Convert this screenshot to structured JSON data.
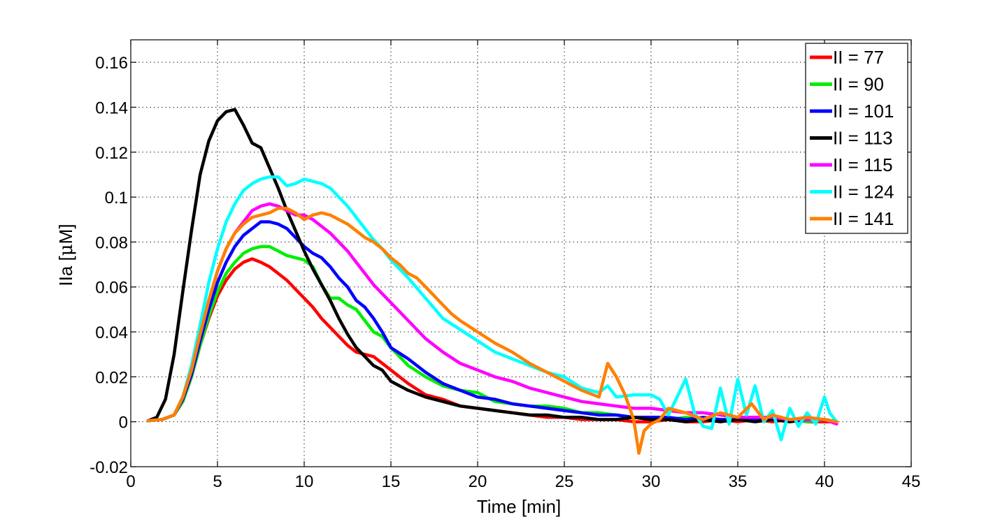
{
  "chart_data": {
    "type": "line",
    "title": "",
    "xlabel": "Time [min]",
    "ylabel_main": "IIa [",
    "ylabel_mu": "μ",
    "ylabel_unit": "M]",
    "xlim": [
      0,
      45
    ],
    "ylim": [
      -0.02,
      0.17
    ],
    "xticks": [
      0,
      5,
      10,
      15,
      20,
      25,
      30,
      35,
      40,
      45
    ],
    "xtick_labels": [
      "0",
      "5",
      "10",
      "15",
      "20",
      "25",
      "30",
      "35",
      "40",
      "45"
    ],
    "yticks": [
      -0.02,
      0,
      0.02,
      0.04,
      0.06,
      0.08,
      0.1,
      0.12,
      0.14,
      0.16
    ],
    "ytick_labels": [
      "-0.02",
      "0",
      "0.02",
      "0.04",
      "0.06",
      "0.08",
      "0.1",
      "0.12",
      "0.14",
      "0.16"
    ],
    "grid": true,
    "legend_position": "top-right",
    "series": [
      {
        "name": "II = 77",
        "color": "#ff0000",
        "x": [
          1,
          1.8,
          2.5,
          3,
          3.5,
          4,
          4.5,
          5,
          5.5,
          6,
          6.5,
          7,
          7.5,
          8,
          8.5,
          9,
          9.5,
          10,
          10.5,
          11,
          11.5,
          12,
          12.5,
          13,
          13.5,
          14,
          15,
          16,
          17,
          18,
          19,
          20,
          21,
          22,
          23,
          24,
          25,
          26,
          27,
          28,
          29,
          30,
          31,
          32,
          33,
          34,
          35,
          36,
          37,
          38,
          39,
          40,
          40.7
        ],
        "y": [
          0.0005,
          0.001,
          0.003,
          0.009,
          0.02,
          0.034,
          0.046,
          0.056,
          0.063,
          0.068,
          0.071,
          0.0725,
          0.071,
          0.069,
          0.066,
          0.063,
          0.059,
          0.055,
          0.051,
          0.046,
          0.042,
          0.038,
          0.034,
          0.031,
          0.03,
          0.029,
          0.023,
          0.017,
          0.012,
          0.01,
          0.007,
          0.006,
          0.005,
          0.004,
          0.003,
          0.002,
          0.002,
          0.001,
          0.001,
          0.001,
          0.0,
          0.0,
          0.001,
          0.0,
          0.0,
          0.001,
          0.0,
          0.001,
          0.0,
          0.001,
          0.0,
          0.0,
          0.0
        ]
      },
      {
        "name": "II = 90",
        "color": "#00ee00",
        "x": [
          1,
          1.8,
          2.5,
          3,
          3.5,
          4,
          4.5,
          5,
          5.5,
          6,
          6.5,
          7,
          7.5,
          8,
          8.5,
          9,
          9.5,
          10,
          10.5,
          11,
          11.5,
          12,
          12.5,
          13,
          13.5,
          14,
          14.5,
          15,
          16,
          17,
          18,
          19,
          20,
          21,
          22,
          23,
          24,
          25,
          26,
          27,
          28,
          29,
          30,
          31,
          32,
          33,
          34,
          35,
          36,
          37,
          38,
          39,
          40,
          40.7
        ],
        "y": [
          0.0005,
          0.001,
          0.003,
          0.009,
          0.02,
          0.034,
          0.047,
          0.058,
          0.066,
          0.071,
          0.075,
          0.077,
          0.078,
          0.078,
          0.076,
          0.074,
          0.073,
          0.072,
          0.069,
          0.061,
          0.055,
          0.055,
          0.052,
          0.05,
          0.045,
          0.04,
          0.038,
          0.033,
          0.025,
          0.02,
          0.016,
          0.014,
          0.013,
          0.009,
          0.008,
          0.007,
          0.007,
          0.006,
          0.004,
          0.004,
          0.003,
          0.002,
          0.002,
          0.001,
          0.002,
          0.001,
          0.001,
          0.001,
          0.001,
          0.001,
          0.001,
          0.0,
          0.001,
          0.0
        ]
      },
      {
        "name": "II = 101",
        "color": "#0000ff",
        "x": [
          1,
          1.8,
          2.5,
          3,
          3.5,
          4,
          4.5,
          5,
          5.5,
          6,
          6.5,
          7,
          7.5,
          8,
          8.5,
          9,
          9.5,
          10,
          10.5,
          11,
          11.5,
          12,
          12.5,
          13,
          13.5,
          14,
          14.5,
          15,
          16,
          17,
          18,
          19,
          20,
          21,
          22,
          23,
          24,
          25,
          26,
          27,
          28,
          29,
          30,
          31,
          32,
          33,
          34,
          35,
          36,
          37,
          38,
          39,
          40,
          40.7
        ],
        "y": [
          0.0005,
          0.001,
          0.003,
          0.01,
          0.021,
          0.036,
          0.05,
          0.062,
          0.071,
          0.078,
          0.083,
          0.086,
          0.089,
          0.089,
          0.088,
          0.086,
          0.082,
          0.078,
          0.075,
          0.073,
          0.069,
          0.064,
          0.06,
          0.054,
          0.051,
          0.046,
          0.04,
          0.033,
          0.028,
          0.022,
          0.017,
          0.014,
          0.011,
          0.01,
          0.008,
          0.007,
          0.006,
          0.005,
          0.004,
          0.003,
          0.003,
          0.002,
          0.002,
          0.002,
          0.001,
          0.002,
          0.001,
          0.001,
          0.001,
          0.001,
          0.001,
          0.001,
          0.001,
          0.0
        ]
      },
      {
        "name": "II = 113",
        "color": "#000000",
        "x": [
          1,
          1.5,
          2,
          2.5,
          3,
          3.5,
          4,
          4.5,
          5,
          5.5,
          6,
          6.5,
          7,
          7.5,
          8,
          8.5,
          9,
          9.5,
          10,
          10.5,
          11,
          11.5,
          12,
          12.5,
          13,
          13.5,
          14,
          14.5,
          15,
          16,
          17,
          18,
          19,
          20,
          21,
          22,
          23,
          24,
          25,
          26,
          27,
          28,
          29,
          30,
          31,
          32,
          33,
          34,
          35,
          36,
          37,
          38,
          39,
          40,
          40.7
        ],
        "y": [
          0.0005,
          0.002,
          0.01,
          0.03,
          0.058,
          0.085,
          0.11,
          0.125,
          0.134,
          0.138,
          0.139,
          0.132,
          0.124,
          0.122,
          0.113,
          0.104,
          0.094,
          0.085,
          0.076,
          0.068,
          0.061,
          0.054,
          0.046,
          0.039,
          0.033,
          0.029,
          0.025,
          0.023,
          0.018,
          0.014,
          0.011,
          0.009,
          0.007,
          0.006,
          0.005,
          0.004,
          0.003,
          0.003,
          0.002,
          0.002,
          0.001,
          0.001,
          0.002,
          0.001,
          0.001,
          0.0,
          0.001,
          0.0,
          0.001,
          0.0,
          0.001,
          0.0,
          0.001,
          0.001,
          0.0
        ]
      },
      {
        "name": "II = 115",
        "color": "#ff00ff",
        "x": [
          1,
          1.8,
          2.5,
          3,
          3.5,
          4,
          4.5,
          5,
          5.5,
          6,
          6.5,
          7,
          7.5,
          8,
          8.5,
          9,
          9.5,
          10,
          10.5,
          11,
          11.5,
          12,
          12.5,
          13,
          13.5,
          14,
          14.5,
          15,
          16,
          17,
          18,
          19,
          20,
          21,
          22,
          23,
          24,
          25,
          26,
          27,
          28,
          29,
          30,
          31,
          32,
          33,
          34,
          35,
          36,
          37,
          38,
          39,
          40,
          40.7
        ],
        "y": [
          0.0005,
          0.001,
          0.003,
          0.011,
          0.023,
          0.039,
          0.054,
          0.067,
          0.077,
          0.084,
          0.089,
          0.094,
          0.096,
          0.097,
          0.096,
          0.094,
          0.092,
          0.092,
          0.09,
          0.087,
          0.084,
          0.08,
          0.076,
          0.071,
          0.066,
          0.061,
          0.057,
          0.053,
          0.045,
          0.037,
          0.031,
          0.026,
          0.023,
          0.02,
          0.018,
          0.015,
          0.013,
          0.011,
          0.009,
          0.008,
          0.007,
          0.006,
          0.006,
          0.005,
          0.004,
          0.004,
          0.003,
          0.002,
          0.002,
          0.002,
          0.001,
          0.001,
          0.001,
          -0.001
        ]
      },
      {
        "name": "II = 124",
        "color": "#00ffff",
        "x": [
          1,
          1.8,
          2.5,
          3,
          3.5,
          4,
          4.5,
          5,
          5.5,
          6,
          6.5,
          7,
          7.5,
          8,
          8.5,
          9,
          9.5,
          10,
          10.5,
          11,
          11.5,
          12,
          12.5,
          13,
          13.5,
          14,
          14.5,
          15,
          16,
          17,
          18,
          19,
          20,
          21,
          22,
          23,
          24,
          25,
          26,
          27,
          27.5,
          28,
          29,
          30,
          30.5,
          31,
          32,
          32.5,
          33,
          33.5,
          34,
          34.5,
          35,
          35.5,
          36,
          36.5,
          37,
          37.5,
          38,
          38.5,
          39,
          39.5,
          40,
          40.3,
          40.7
        ],
        "y": [
          0.0005,
          0.001,
          0.003,
          0.011,
          0.025,
          0.043,
          0.062,
          0.077,
          0.089,
          0.097,
          0.103,
          0.106,
          0.108,
          0.109,
          0.109,
          0.105,
          0.106,
          0.108,
          0.107,
          0.106,
          0.104,
          0.1,
          0.096,
          0.091,
          0.086,
          0.081,
          0.077,
          0.072,
          0.064,
          0.055,
          0.046,
          0.041,
          0.036,
          0.031,
          0.028,
          0.025,
          0.022,
          0.02,
          0.015,
          0.013,
          0.016,
          0.011,
          0.012,
          0.012,
          0.01,
          0.003,
          0.019,
          0.004,
          -0.002,
          -0.003,
          0.015,
          -0.001,
          0.019,
          0.003,
          0.016,
          0.0,
          0.005,
          -0.008,
          0.006,
          -0.002,
          0.004,
          -0.001,
          0.011,
          0.004,
          0.0
        ]
      },
      {
        "name": "II = 141",
        "color": "#ff8000",
        "x": [
          1,
          1.8,
          2.5,
          3,
          3.5,
          4,
          4.5,
          5,
          5.5,
          6,
          6.5,
          7,
          7.5,
          8,
          8.5,
          9,
          9.5,
          10,
          10.5,
          11,
          11.5,
          12,
          12.5,
          13,
          13.5,
          14,
          14.5,
          15,
          15.5,
          16,
          16.5,
          17,
          17.5,
          18,
          18.5,
          19,
          20,
          21,
          22,
          23,
          24,
          25,
          26,
          27,
          27.5,
          28,
          28.5,
          29,
          29.3,
          29.6,
          30,
          30.5,
          31,
          32,
          33,
          34,
          35,
          35.8,
          36.5,
          37,
          38,
          39,
          40,
          40.7
        ],
        "y": [
          0.0005,
          0.001,
          0.003,
          0.011,
          0.023,
          0.039,
          0.054,
          0.067,
          0.077,
          0.084,
          0.088,
          0.091,
          0.092,
          0.093,
          0.095,
          0.095,
          0.093,
          0.09,
          0.092,
          0.093,
          0.092,
          0.09,
          0.088,
          0.085,
          0.082,
          0.08,
          0.077,
          0.073,
          0.07,
          0.066,
          0.064,
          0.06,
          0.056,
          0.052,
          0.048,
          0.045,
          0.04,
          0.035,
          0.031,
          0.026,
          0.022,
          0.018,
          0.014,
          0.011,
          0.026,
          0.02,
          0.012,
          0.001,
          -0.014,
          -0.004,
          -0.001,
          0.001,
          0.006,
          0.004,
          0.001,
          0.004,
          0.002,
          0.008,
          0.001,
          0.003,
          0.001,
          0.002,
          0.001,
          0.0
        ]
      }
    ]
  }
}
